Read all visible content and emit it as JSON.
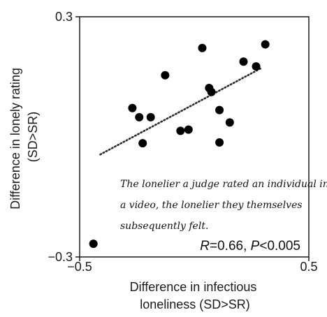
{
  "chart_data": {
    "type": "scatter",
    "xlabel_lines": [
      "Difference in infectious",
      "loneliness (SD>SR)"
    ],
    "ylabel_lines": [
      "Difference in lonely rating",
      "(SD>SR)"
    ],
    "xlim": [
      -0.5,
      0.5
    ],
    "ylim": [
      -0.3,
      0.3
    ],
    "x_ticks": [
      {
        "value": -0.5,
        "label": "−0.5"
      },
      {
        "value": 0.5,
        "label": "0.5"
      }
    ],
    "y_ticks": [
      {
        "value": 0.3,
        "label": "0.3"
      },
      {
        "value": -0.3,
        "label": "−0.3"
      }
    ],
    "points": [
      {
        "x": -0.44,
        "y": -0.267
      },
      {
        "x": -0.27,
        "y": 0.072
      },
      {
        "x": -0.24,
        "y": 0.049
      },
      {
        "x": -0.225,
        "y": -0.016
      },
      {
        "x": -0.19,
        "y": 0.049
      },
      {
        "x": -0.127,
        "y": 0.154
      },
      {
        "x": -0.06,
        "y": 0.015
      },
      {
        "x": -0.025,
        "y": 0.018
      },
      {
        "x": 0.035,
        "y": 0.222
      },
      {
        "x": 0.065,
        "y": 0.122
      },
      {
        "x": 0.075,
        "y": 0.112
      },
      {
        "x": 0.11,
        "y": 0.067
      },
      {
        "x": 0.11,
        "y": -0.014
      },
      {
        "x": 0.155,
        "y": 0.036
      },
      {
        "x": 0.215,
        "y": 0.188
      },
      {
        "x": 0.27,
        "y": 0.176
      },
      {
        "x": 0.31,
        "y": 0.231
      }
    ],
    "fit_line": {
      "x": [
        -0.41,
        0.29
      ],
      "y": [
        -0.044,
        0.171
      ]
    },
    "annotation_lines": [
      "The lonelier a judge rated an individual in",
      "a video, the lonelier they themselves",
      "subsequently felt."
    ],
    "stat_text": {
      "r_symbol": "R",
      "r_value": "=0.66, ",
      "p_symbol": "P",
      "p_value": "<0.005"
    },
    "grid": false,
    "legend": false
  }
}
